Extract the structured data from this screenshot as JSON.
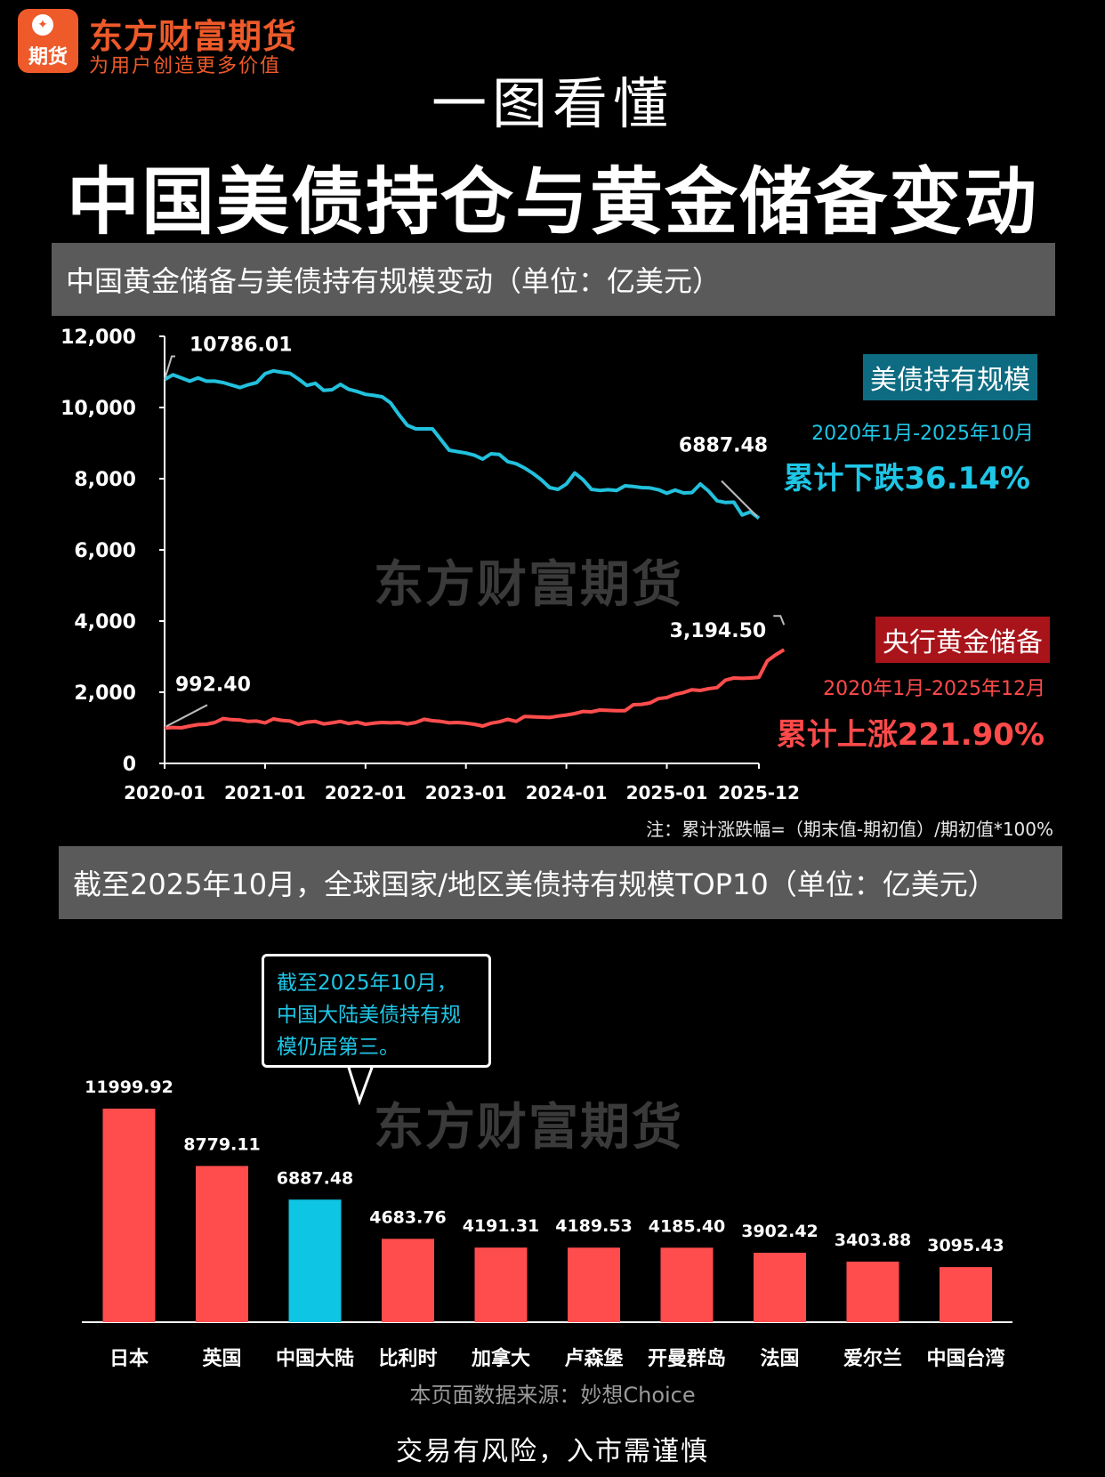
{
  "brand": {
    "name": "东方财富期货",
    "slogan": "为用户创造更多价值",
    "logo_text": "期货",
    "icon": "leaf-icon"
  },
  "header": {
    "subtitle": "一图看懂",
    "title": "中国美债持仓与黄金储备变动"
  },
  "section1": {
    "title": "中国黄金储备与美债持有规模变动（单位：亿美元）"
  },
  "section2": {
    "title": "截至2025年10月，全球国家/地区美债持有规模TOP10（单位：亿美元）"
  },
  "legend": {
    "treasury_label": "美债持有规模",
    "treasury_range": "2020年1月-2025年10月",
    "treasury_change": "累计下跌36.14%",
    "gold_label": "央行黄金储备",
    "gold_range": "2020年1月-2025年12月",
    "gold_change": "累计上涨221.90%"
  },
  "note": "注：累计涨跌幅=（期末值-期初值）/期初值*100%",
  "watermark": "东方财富期货",
  "callout": "截至2025年10月，中国大陆美债持有规模仍居第三。",
  "footer": {
    "source": "本页面数据来源：妙想Choice",
    "risk": "交易有风险，入市需谨慎"
  },
  "colors": {
    "treasury": "#22c1dd",
    "gold": "#ff4d4d",
    "bar": "#ff4d4d",
    "highlight": "#0ec5e4",
    "brand": "#ee5a2a"
  },
  "chart_data": [
    {
      "type": "line",
      "x_ticks": [
        "2020-01",
        "2021-01",
        "2022-01",
        "2023-01",
        "2024-01",
        "2025-01",
        "2025-12"
      ],
      "y_ticks": [
        "12,000",
        "10,000",
        "8,000",
        "6,000",
        "4,000",
        "2,000",
        "0"
      ],
      "ylim": [
        0,
        12000
      ],
      "xlim": [
        "2020-01",
        "2025-12"
      ],
      "grid": false,
      "series": [
        {
          "name": "美债持有规模",
          "start": "2020-01",
          "end": "2025-10",
          "annotations": {
            "first": "10786.01",
            "last": "6887.48"
          },
          "values": [
            10786,
            10920,
            10830,
            10740,
            10830,
            10740,
            10740,
            10700,
            10630,
            10560,
            10640,
            10700,
            10950,
            11030,
            10990,
            10960,
            10800,
            10620,
            10680,
            10480,
            10500,
            10650,
            10510,
            10450,
            10370,
            10340,
            10300,
            10130,
            9800,
            9500,
            9400,
            9400,
            9400,
            9100,
            8800,
            8760,
            8720,
            8660,
            8550,
            8700,
            8680,
            8480,
            8420,
            8300,
            8150,
            7970,
            7750,
            7700,
            7850,
            8160,
            7970,
            7700,
            7670,
            7690,
            7670,
            7800,
            7780,
            7750,
            7740,
            7690,
            7590,
            7680,
            7600,
            7610,
            7850,
            7650,
            7380,
            7330,
            7340,
            6980,
            7070,
            6887.48
          ]
        },
        {
          "name": "央行黄金储备",
          "start": "2020-01",
          "end": "2025-12",
          "annotations": {
            "first": "992.40",
            "last": "3,194.50"
          },
          "values": [
            992.4,
            1010,
            1000,
            1050,
            1090,
            1100,
            1150,
            1260,
            1230,
            1220,
            1180,
            1190,
            1140,
            1250,
            1210,
            1190,
            1100,
            1160,
            1180,
            1110,
            1140,
            1180,
            1120,
            1160,
            1100,
            1130,
            1150,
            1140,
            1150,
            1110,
            1150,
            1240,
            1200,
            1180,
            1140,
            1150,
            1130,
            1100,
            1050,
            1130,
            1170,
            1240,
            1180,
            1320,
            1310,
            1300,
            1290,
            1330,
            1360,
            1400,
            1460,
            1450,
            1500,
            1490,
            1480,
            1480,
            1650,
            1660,
            1700,
            1820,
            1850,
            1940,
            1990,
            2070,
            2050,
            2100,
            2130,
            2340,
            2400,
            2390,
            2400,
            2420,
            2880,
            3050,
            3194.5
          ]
        }
      ]
    },
    {
      "type": "bar",
      "categories": [
        "日本",
        "英国",
        "中国大陆",
        "比利时",
        "加拿大",
        "卢森堡",
        "开曼群岛",
        "法国",
        "爱尔兰",
        "中国台湾"
      ],
      "values": [
        11999.92,
        8779.11,
        6887.48,
        4683.76,
        4191.31,
        4189.53,
        4185.4,
        3902.42,
        3403.88,
        3095.43
      ],
      "value_labels": [
        "11999.92",
        "8779.11",
        "6887.48",
        "4683.76",
        "4191.31",
        "4189.53",
        "4185.40",
        "3902.42",
        "3403.88",
        "3095.43"
      ],
      "highlight": "中国大陆"
    }
  ]
}
